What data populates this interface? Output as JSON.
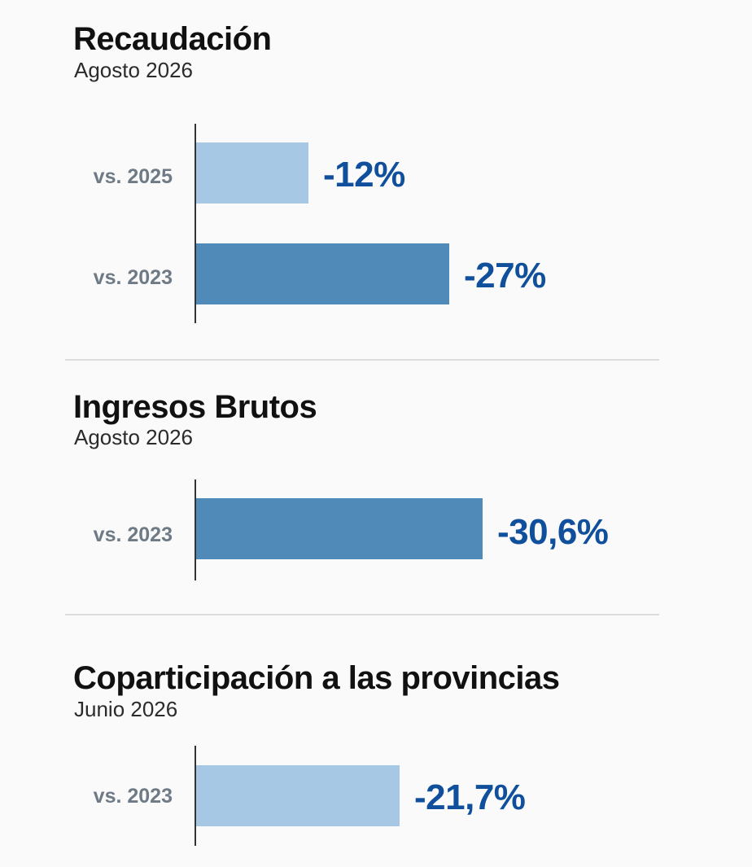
{
  "colors": {
    "bar_light": "#a7c8e4",
    "bar_dark": "#4f8ab9",
    "value_text": "#0f4f9c",
    "title_text": "#111111",
    "row_label_text": "#6e7a85"
  },
  "chart_data": [
    {
      "type": "bar",
      "orientation": "horizontal",
      "title": "Recaudación",
      "subtitle": "Agosto 2026",
      "categories": [
        "vs. 2025",
        "vs. 2023"
      ],
      "values": [
        -12,
        -27
      ],
      "value_labels": [
        "-12%",
        "-27%"
      ],
      "bar_colors": [
        "#a7c8e4",
        "#4f8ab9"
      ],
      "xlim": [
        0,
        -40
      ]
    },
    {
      "type": "bar",
      "orientation": "horizontal",
      "title": "Ingresos Brutos",
      "subtitle": "Agosto 2026",
      "categories": [
        "vs. 2023"
      ],
      "values": [
        -30.6
      ],
      "value_labels": [
        "-30,6%"
      ],
      "bar_colors": [
        "#4f8ab9"
      ],
      "xlim": [
        0,
        -40
      ]
    },
    {
      "type": "bar",
      "orientation": "horizontal",
      "title": "Coparticipación a las provincias",
      "subtitle": "Junio 2026",
      "categories": [
        "vs. 2023"
      ],
      "values": [
        -21.7
      ],
      "value_labels": [
        "-21,7%"
      ],
      "bar_colors": [
        "#a7c8e4"
      ],
      "xlim": [
        0,
        -40
      ]
    }
  ]
}
